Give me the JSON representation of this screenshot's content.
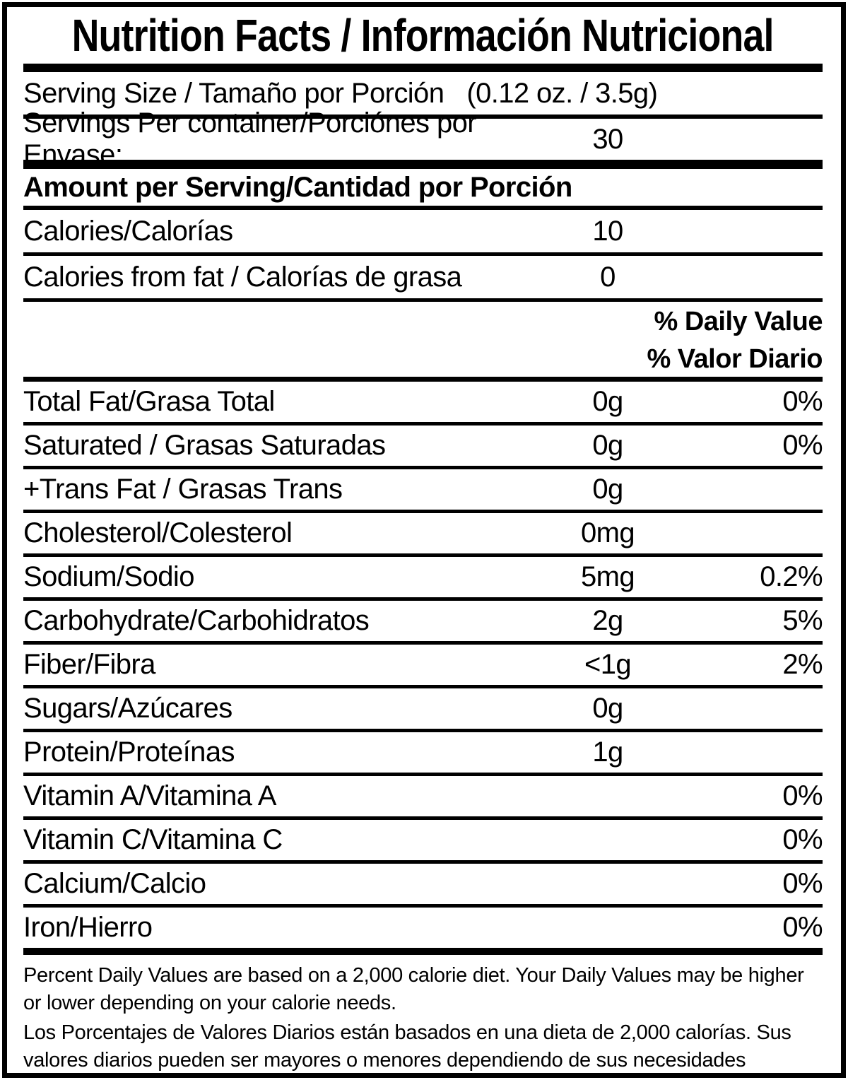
{
  "label": {
    "title": "Nutrition Facts / Información Nutricional",
    "serving_size": {
      "label": "Serving Size / Tamaño por Porción",
      "value": "(0.12 oz. / 3.5g)"
    },
    "servings_per_container": {
      "label": "Servings Per container/Porciónes por Envase:",
      "value": "30"
    },
    "amount_per_serving_header": "Amount per Serving/Cantidad por Porción",
    "calories": {
      "label": "Calories/Calorías",
      "value": "10"
    },
    "calories_from_fat": {
      "label": "Calories from fat / Calorías de grasa",
      "value": "0"
    },
    "daily_value_header_en": "% Daily Value",
    "daily_value_header_es": "% Valor Diario",
    "nutrients": [
      {
        "label": "Total Fat/Grasa Total",
        "amount": "0g",
        "dv": "0%"
      },
      {
        "label": "Saturated / Grasas Saturadas",
        "amount": "0g",
        "dv": "0%"
      },
      {
        "label": "+Trans Fat / Grasas Trans",
        "amount": "0g",
        "dv": ""
      },
      {
        "label": "Cholesterol/Colesterol",
        "amount": "0mg",
        "dv": ""
      },
      {
        "label": "Sodium/Sodio",
        "amount": "5mg",
        "dv": "0.2%"
      },
      {
        "label": "Carbohydrate/Carbohidratos",
        "amount": "2g",
        "dv": "5%"
      },
      {
        "label": "Fiber/Fibra",
        "amount": "<1g",
        "dv": "2%"
      },
      {
        "label": "Sugars/Azúcares",
        "amount": "0g",
        "dv": ""
      },
      {
        "label": "Protein/Proteínas",
        "amount": "1g",
        "dv": ""
      },
      {
        "label": "Vitamin A/Vitamina A",
        "amount": "",
        "dv": "0%"
      },
      {
        "label": "Vitamin C/Vitamina C",
        "amount": "",
        "dv": "0%"
      },
      {
        "label": "Calcium/Calcio",
        "amount": "",
        "dv": "0%"
      },
      {
        "label": "Iron/Hierro",
        "amount": "",
        "dv": "0%"
      }
    ],
    "footnotes": {
      "en": "Percent Daily Values are based on a 2,000 calorie diet. Your Daily Values may be higher or lower depending on your calorie needs.",
      "es": "Los Porcentajes de Valores Diarios están basados en una dieta de 2,000 calorías. Sus valores diarios pueden ser mayores o menores dependiendo de sus necesidades calóricas"
    },
    "colors": {
      "ink": "#000000",
      "paper": "#ffffff"
    }
  }
}
